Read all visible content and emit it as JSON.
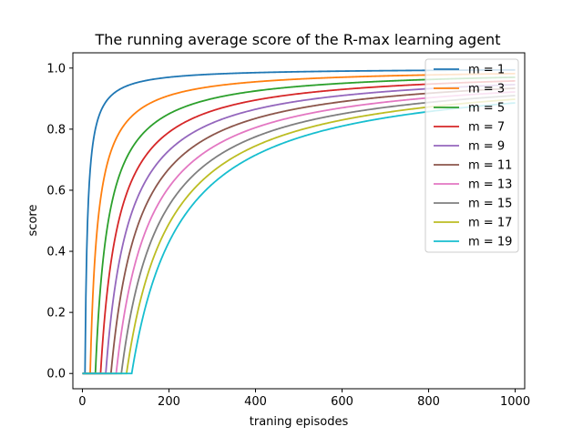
{
  "chart_data": {
    "type": "line",
    "title": "The running average score of the R-max learning agent",
    "xlabel": "traning episodes",
    "ylabel": "score",
    "xlim": [
      -22,
      1022
    ],
    "ylim": [
      -0.05,
      1.05
    ],
    "xticks": [
      0,
      200,
      400,
      600,
      800,
      1000
    ],
    "yticks": [
      0.0,
      0.2,
      0.4,
      0.6,
      0.8,
      1.0
    ],
    "xtick_labels": [
      "0",
      "200",
      "400",
      "600",
      "800",
      "1000"
    ],
    "ytick_labels": [
      "0.0",
      "0.2",
      "0.4",
      "0.6",
      "0.8",
      "1.0"
    ],
    "grid": false,
    "legend_position": "top-right",
    "x_max": 1000,
    "series": [
      {
        "name": "m = 1",
        "color": "#1f77b4",
        "onset": 6,
        "score_at_1000": 0.994
      },
      {
        "name": "m = 3",
        "color": "#ff7f0e",
        "onset": 18,
        "score_at_1000": 0.982
      },
      {
        "name": "m = 5",
        "color": "#2ca02c",
        "onset": 30,
        "score_at_1000": 0.97
      },
      {
        "name": "m = 7",
        "color": "#d62728",
        "onset": 42,
        "score_at_1000": 0.958
      },
      {
        "name": "m = 9",
        "color": "#9467bd",
        "onset": 54,
        "score_at_1000": 0.946
      },
      {
        "name": "m = 11",
        "color": "#8c564b",
        "onset": 66,
        "score_at_1000": 0.934
      },
      {
        "name": "m = 13",
        "color": "#e377c2",
        "onset": 78,
        "score_at_1000": 0.922
      },
      {
        "name": "m = 15",
        "color": "#7f7f7f",
        "onset": 90,
        "score_at_1000": 0.91
      },
      {
        "name": "m = 17",
        "color": "#bcbd22",
        "onset": 102,
        "score_at_1000": 0.898
      },
      {
        "name": "m = 19",
        "color": "#17becf",
        "onset": 114,
        "score_at_1000": 0.886
      }
    ]
  }
}
